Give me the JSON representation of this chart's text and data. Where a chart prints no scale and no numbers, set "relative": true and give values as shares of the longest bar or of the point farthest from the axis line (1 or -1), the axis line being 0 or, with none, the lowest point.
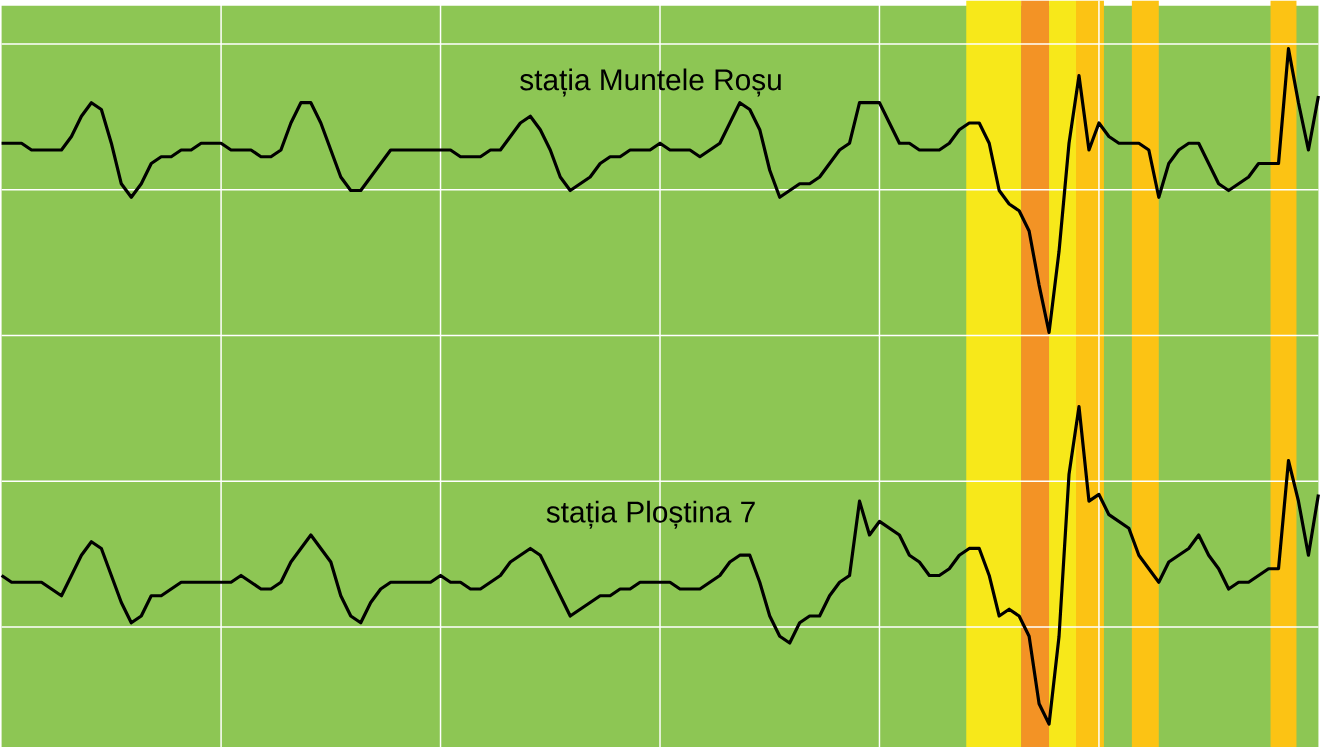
{
  "chart_data": {
    "type": "line",
    "relative": true,
    "grid": true,
    "categories": [
      null,
      null,
      null,
      null,
      null,
      null,
      null,
      null,
      null,
      null,
      null,
      null,
      null,
      null,
      null,
      null,
      null,
      null,
      null,
      null,
      null,
      null,
      null,
      null,
      null,
      null,
      null,
      null,
      null,
      null,
      null,
      null,
      null,
      null,
      null,
      null,
      null,
      null,
      null,
      null,
      null,
      null,
      null,
      null,
      null,
      null,
      null,
      null,
      null,
      null,
      null,
      null,
      null,
      null,
      null,
      null,
      null,
      null,
      null,
      null,
      null,
      null,
      null,
      null,
      null,
      null,
      null,
      null,
      null,
      null,
      null,
      null,
      null,
      null,
      null,
      null,
      null,
      null,
      null,
      null,
      null,
      null,
      null,
      null,
      null,
      null,
      null,
      null,
      null,
      null,
      null,
      null,
      null,
      null,
      null,
      null,
      null,
      null,
      null,
      null,
      null,
      null,
      null,
      null,
      null,
      null,
      null,
      null,
      null,
      null,
      null,
      null,
      null,
      null,
      null,
      null,
      null,
      null,
      null,
      null,
      null,
      null,
      null,
      null,
      null,
      null,
      null,
      null,
      null,
      null,
      null,
      null,
      null
    ],
    "series": [
      {
        "name": "stația Muntele Roșu",
        "color": "#000000",
        "values": [
          0.86,
          0.86,
          0.86,
          0.85,
          0.85,
          0.85,
          0.85,
          0.87,
          0.9,
          0.92,
          0.91,
          0.86,
          0.8,
          0.78,
          0.8,
          0.83,
          0.84,
          0.84,
          0.85,
          0.85,
          0.86,
          0.86,
          0.86,
          0.85,
          0.85,
          0.85,
          0.84,
          0.84,
          0.85,
          0.89,
          0.92,
          0.92,
          0.89,
          0.85,
          0.81,
          0.79,
          0.79,
          0.81,
          0.83,
          0.85,
          0.85,
          0.85,
          0.85,
          0.85,
          0.85,
          0.85,
          0.84,
          0.84,
          0.84,
          0.85,
          0.85,
          0.87,
          0.89,
          0.9,
          0.88,
          0.85,
          0.81,
          0.79,
          0.8,
          0.81,
          0.83,
          0.84,
          0.84,
          0.85,
          0.85,
          0.85,
          0.86,
          0.85,
          0.85,
          0.85,
          0.84,
          0.85,
          0.86,
          0.89,
          0.92,
          0.91,
          0.88,
          0.82,
          0.78,
          0.79,
          0.8,
          0.8,
          0.81,
          0.83,
          0.85,
          0.86,
          0.92,
          0.92,
          0.92,
          0.89,
          0.86,
          0.86,
          0.85,
          0.85,
          0.85,
          0.86,
          0.88,
          0.89,
          0.89,
          0.86,
          0.79,
          0.77,
          0.76,
          0.73,
          0.65,
          0.58,
          0.7,
          0.86,
          0.96,
          0.85,
          0.89,
          0.87,
          0.86,
          0.86,
          0.86,
          0.85,
          0.78,
          0.83,
          0.85,
          0.86,
          0.86,
          0.83,
          0.8,
          0.79,
          0.8,
          0.81,
          0.83,
          0.83,
          0.83,
          1.0,
          0.92,
          0.85,
          0.93
        ]
      },
      {
        "name": "stația Ploștina 7",
        "color": "#000000",
        "values": [
          0.22,
          0.21,
          0.21,
          0.21,
          0.21,
          0.2,
          0.19,
          0.22,
          0.25,
          0.27,
          0.26,
          0.22,
          0.18,
          0.15,
          0.16,
          0.19,
          0.19,
          0.2,
          0.21,
          0.21,
          0.21,
          0.21,
          0.21,
          0.21,
          0.22,
          0.21,
          0.2,
          0.2,
          0.21,
          0.24,
          0.26,
          0.28,
          0.26,
          0.24,
          0.19,
          0.16,
          0.15,
          0.18,
          0.2,
          0.21,
          0.21,
          0.21,
          0.21,
          0.21,
          0.22,
          0.21,
          0.21,
          0.2,
          0.2,
          0.21,
          0.22,
          0.24,
          0.25,
          0.26,
          0.25,
          0.22,
          0.19,
          0.16,
          0.17,
          0.18,
          0.19,
          0.19,
          0.2,
          0.2,
          0.21,
          0.21,
          0.21,
          0.21,
          0.2,
          0.2,
          0.2,
          0.21,
          0.22,
          0.24,
          0.25,
          0.25,
          0.21,
          0.16,
          0.13,
          0.12,
          0.15,
          0.16,
          0.16,
          0.19,
          0.21,
          0.22,
          0.33,
          0.28,
          0.3,
          0.29,
          0.28,
          0.25,
          0.24,
          0.22,
          0.22,
          0.23,
          0.25,
          0.26,
          0.26,
          0.22,
          0.16,
          0.17,
          0.16,
          0.13,
          0.03,
          0.0,
          0.13,
          0.37,
          0.47,
          0.33,
          0.34,
          0.31,
          0.3,
          0.29,
          0.25,
          0.23,
          0.21,
          0.24,
          0.25,
          0.26,
          0.28,
          0.25,
          0.23,
          0.2,
          0.21,
          0.21,
          0.22,
          0.23,
          0.23,
          0.39,
          0.33,
          0.25,
          0.34
        ]
      }
    ]
  }
}
